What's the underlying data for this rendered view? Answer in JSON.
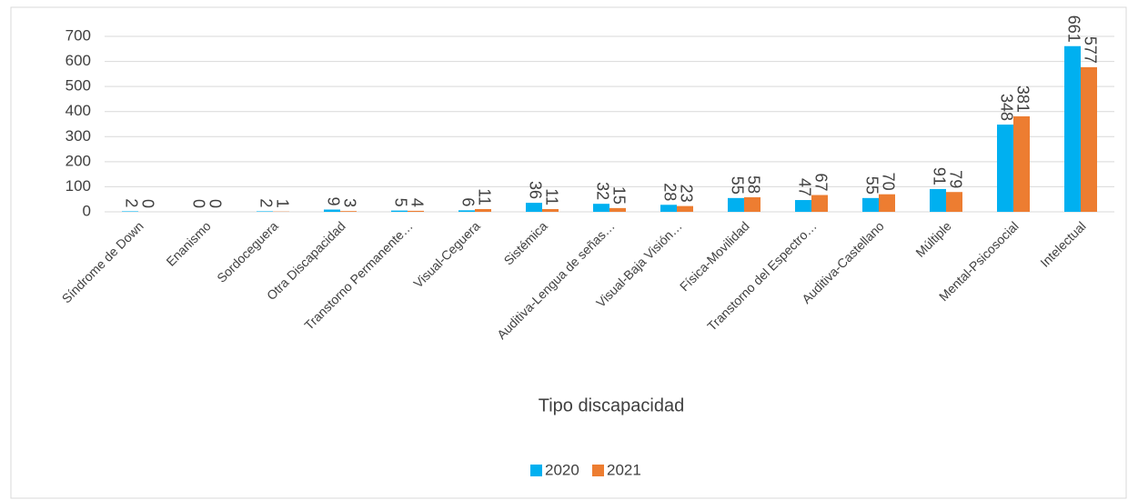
{
  "chart_data": {
    "type": "bar",
    "x_label": "Tipo discapacidad",
    "categories": [
      "Síndrome de Down",
      "Enanismo",
      "Sordoceguera",
      "Otra Discapacidad",
      "Transtorno Permanente…",
      "Visual-Ceguera",
      "Sistémica",
      "Auditiva-Lengua de señas…",
      "Visual-Baja Visión…",
      "Física-Movilidad",
      "Transtorno del Espectro…",
      "Auditiva-Castellano",
      "Múltiple",
      "Mental-Psicosocial",
      "Intelectual"
    ],
    "series": [
      {
        "name": "2020",
        "color": "#00b0f0",
        "values": [
          2,
          0,
          2,
          9,
          5,
          6,
          36,
          32,
          28,
          55,
          47,
          55,
          91,
          348,
          661
        ]
      },
      {
        "name": "2021",
        "color": "#ed7d31",
        "values": [
          0,
          0,
          1,
          3,
          4,
          11,
          11,
          15,
          23,
          58,
          67,
          70,
          79,
          381,
          577
        ]
      }
    ],
    "ylim": [
      0,
      700
    ],
    "yticks": [
      0,
      100,
      200,
      300,
      400,
      500,
      600,
      700
    ],
    "grid": true,
    "legend": "bottom"
  }
}
